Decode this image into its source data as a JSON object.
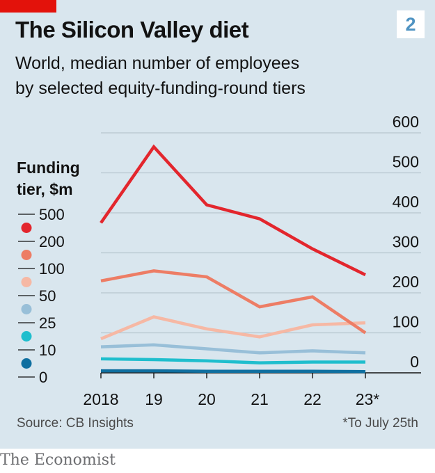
{
  "header": {
    "badge": "2",
    "title": "The Silicon Valley diet",
    "subtitle_line1": "World, median number of employees",
    "subtitle_line2": "by selected equity-funding-round tiers"
  },
  "legend": {
    "title_line1": "Funding",
    "title_line2": "tier, $m"
  },
  "footer": {
    "source": "Source: CB Insights",
    "footnote": "*To July 25th",
    "brand": "The Economist"
  },
  "colors": {
    "background": "#d9e6ee",
    "brand_red": "#e3120b"
  },
  "chart_data": {
    "type": "line",
    "title": "The Silicon Valley diet",
    "subtitle": "World, median number of employees by selected equity-funding-round tiers",
    "xlabel": "",
    "ylabel": "",
    "x": [
      "2018",
      "19",
      "20",
      "21",
      "22",
      "23*"
    ],
    "ylim": [
      0,
      600
    ],
    "yticks": [
      0,
      100,
      200,
      300,
      400,
      500,
      600
    ],
    "ytick_labels": [
      "0",
      "100",
      "200",
      "300",
      "400",
      "500",
      "600"
    ],
    "legend_title": "Funding tier, $m",
    "legend_ticks": [
      "500",
      "200",
      "100",
      "50",
      "25",
      "10",
      "0"
    ],
    "series": [
      {
        "name": "500",
        "color": "#e3262d",
        "values": [
          375,
          565,
          420,
          385,
          310,
          245
        ]
      },
      {
        "name": "200",
        "color": "#ed7d65",
        "values": [
          230,
          255,
          240,
          165,
          190,
          100
        ]
      },
      {
        "name": "100",
        "color": "#f6b8a4",
        "values": [
          85,
          140,
          110,
          90,
          120,
          125
        ]
      },
      {
        "name": "50",
        "color": "#98bfd8",
        "values": [
          65,
          70,
          60,
          50,
          55,
          50
        ]
      },
      {
        "name": "25",
        "color": "#1fbecd",
        "values": [
          35,
          33,
          30,
          25,
          27,
          27
        ]
      },
      {
        "name": "10",
        "color": "#0f6fa0",
        "values": [
          5,
          5,
          4,
          4,
          4,
          3
        ]
      }
    ]
  }
}
